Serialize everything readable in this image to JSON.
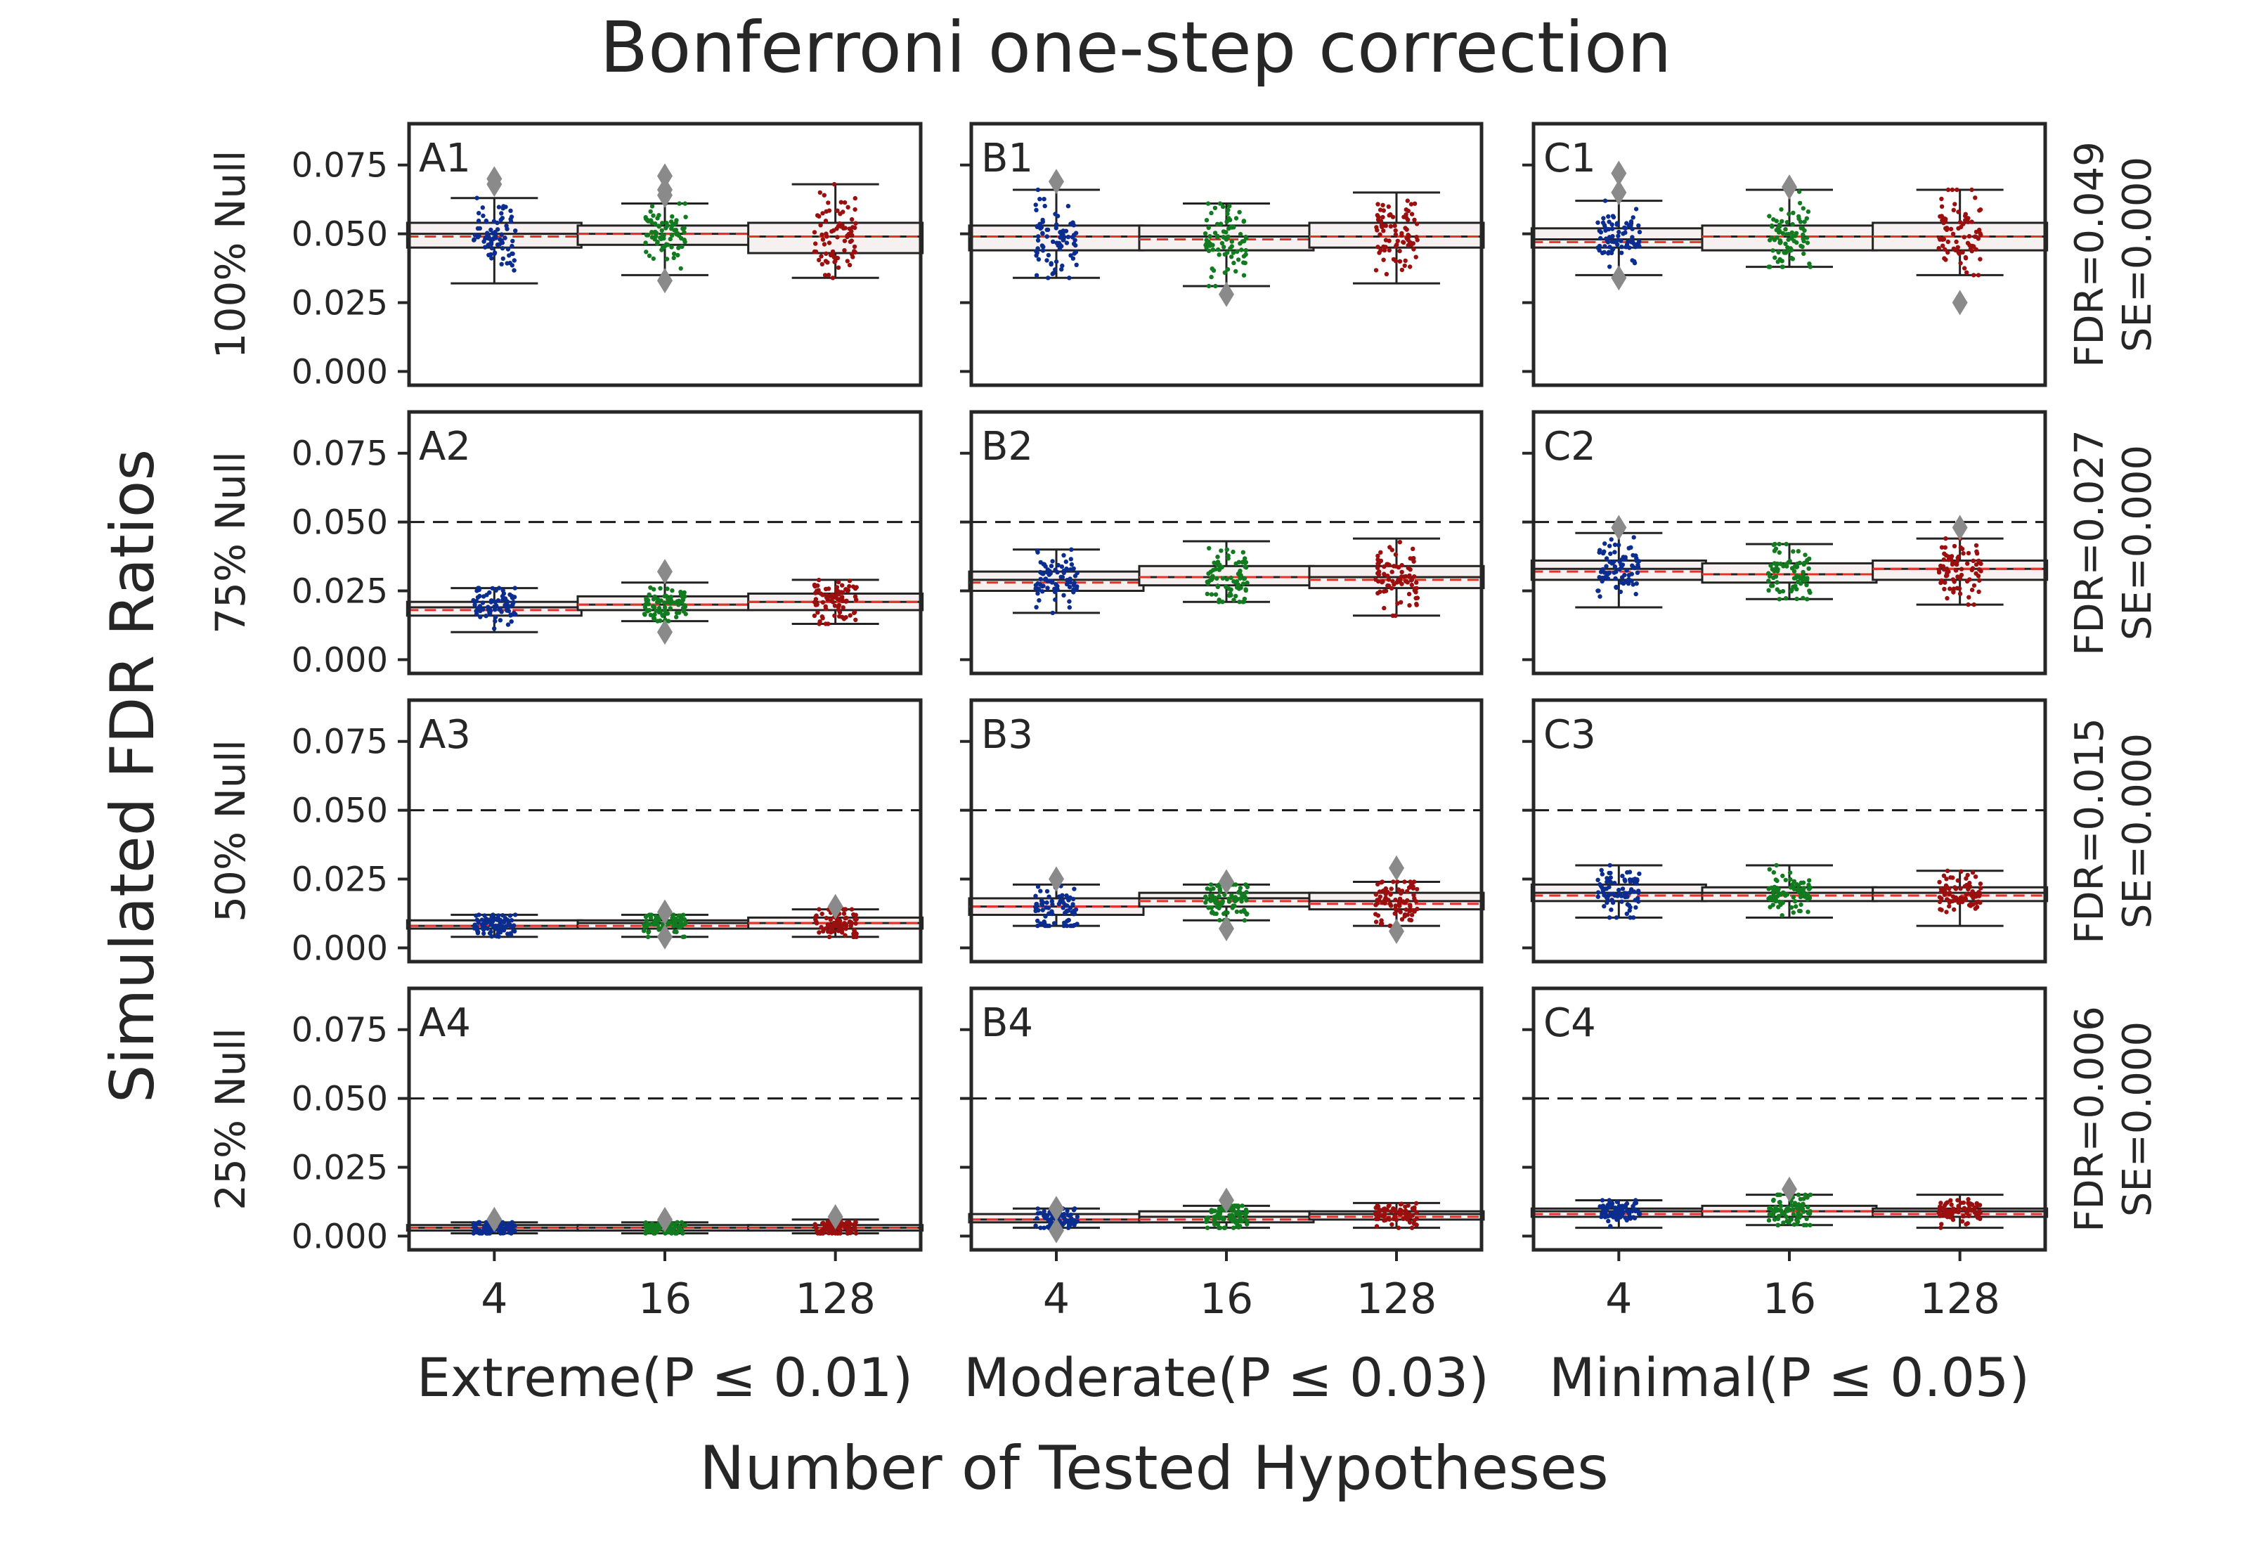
{
  "chart_data": {
    "type": "box",
    "title": "Bonferroni one-step correction",
    "xlabel": "Number of Tested Hypotheses",
    "ylabel": "Simulated FDR Ratios",
    "ylim": [
      -0.005,
      0.09
    ],
    "yticks": [
      "0.000",
      "0.025",
      "0.050",
      "0.075"
    ],
    "ytick_values": [
      0,
      0.025,
      0.05,
      0.075
    ],
    "reference_line": 0.05,
    "categories": [
      "4",
      "16",
      "128"
    ],
    "series_colors": [
      "#0b2d8f",
      "#127a1f",
      "#9b0f0f"
    ],
    "columns": [
      "Extreme(P ≤ 0.01)",
      "Moderate(P ≤ 0.03)",
      "Minimal(P ≤ 0.05)"
    ],
    "rows": [
      {
        "label": "100% Null",
        "annotation": [
          "FDR=0.049",
          "SE=0.000"
        ]
      },
      {
        "label": "75% Null",
        "annotation": [
          "FDR=0.027",
          "SE=0.000"
        ]
      },
      {
        "label": "50% Null",
        "annotation": [
          "FDR=0.015",
          "SE=0.000"
        ]
      },
      {
        "label": "25% Null",
        "annotation": [
          "FDR=0.006",
          "SE=0.000"
        ]
      }
    ],
    "panels": [
      {
        "id": "A1",
        "row": 0,
        "col": 0,
        "boxes": [
          {
            "category": "4",
            "q1": 0.045,
            "median": 0.05,
            "q3": 0.054,
            "mean": 0.049,
            "wlo": 0.032,
            "whi": 0.063,
            "outliers": [
              0.07,
              0.068
            ]
          },
          {
            "category": "16",
            "q1": 0.046,
            "median": 0.05,
            "q3": 0.053,
            "mean": 0.05,
            "wlo": 0.035,
            "whi": 0.061,
            "outliers": [
              0.071,
              0.066,
              0.064,
              0.033
            ]
          },
          {
            "category": "128",
            "q1": 0.043,
            "median": 0.049,
            "q3": 0.054,
            "mean": 0.049,
            "wlo": 0.034,
            "whi": 0.068,
            "outliers": []
          }
        ]
      },
      {
        "id": "B1",
        "row": 0,
        "col": 1,
        "boxes": [
          {
            "category": "4",
            "q1": 0.044,
            "median": 0.049,
            "q3": 0.053,
            "mean": 0.049,
            "wlo": 0.034,
            "whi": 0.066,
            "outliers": [
              0.069
            ]
          },
          {
            "category": "16",
            "q1": 0.044,
            "median": 0.049,
            "q3": 0.053,
            "mean": 0.048,
            "wlo": 0.031,
            "whi": 0.061,
            "outliers": [
              0.028
            ]
          },
          {
            "category": "128",
            "q1": 0.045,
            "median": 0.049,
            "q3": 0.054,
            "mean": 0.049,
            "wlo": 0.032,
            "whi": 0.065,
            "outliers": []
          }
        ]
      },
      {
        "id": "C1",
        "row": 0,
        "col": 2,
        "boxes": [
          {
            "category": "4",
            "q1": 0.045,
            "median": 0.048,
            "q3": 0.052,
            "mean": 0.047,
            "wlo": 0.035,
            "whi": 0.062,
            "outliers": [
              0.072,
              0.065,
              0.034
            ]
          },
          {
            "category": "16",
            "q1": 0.044,
            "median": 0.049,
            "q3": 0.053,
            "mean": 0.049,
            "wlo": 0.038,
            "whi": 0.066,
            "outliers": [
              0.067
            ]
          },
          {
            "category": "128",
            "q1": 0.044,
            "median": 0.049,
            "q3": 0.054,
            "mean": 0.049,
            "wlo": 0.035,
            "whi": 0.066,
            "outliers": [
              0.025
            ]
          }
        ]
      },
      {
        "id": "A2",
        "row": 1,
        "col": 0,
        "boxes": [
          {
            "category": "4",
            "q1": 0.016,
            "median": 0.019,
            "q3": 0.021,
            "mean": 0.018,
            "wlo": 0.01,
            "whi": 0.026,
            "outliers": []
          },
          {
            "category": "16",
            "q1": 0.018,
            "median": 0.02,
            "q3": 0.023,
            "mean": 0.02,
            "wlo": 0.014,
            "whi": 0.028,
            "outliers": [
              0.032,
              0.01
            ]
          },
          {
            "category": "128",
            "q1": 0.018,
            "median": 0.021,
            "q3": 0.024,
            "mean": 0.021,
            "wlo": 0.013,
            "whi": 0.029,
            "outliers": []
          }
        ]
      },
      {
        "id": "B2",
        "row": 1,
        "col": 1,
        "boxes": [
          {
            "category": "4",
            "q1": 0.025,
            "median": 0.029,
            "q3": 0.032,
            "mean": 0.028,
            "wlo": 0.017,
            "whi": 0.04,
            "outliers": []
          },
          {
            "category": "16",
            "q1": 0.027,
            "median": 0.03,
            "q3": 0.034,
            "mean": 0.03,
            "wlo": 0.021,
            "whi": 0.043,
            "outliers": []
          },
          {
            "category": "128",
            "q1": 0.026,
            "median": 0.03,
            "q3": 0.034,
            "mean": 0.029,
            "wlo": 0.016,
            "whi": 0.044,
            "outliers": []
          }
        ]
      },
      {
        "id": "C2",
        "row": 1,
        "col": 2,
        "boxes": [
          {
            "category": "4",
            "q1": 0.029,
            "median": 0.033,
            "q3": 0.036,
            "mean": 0.032,
            "wlo": 0.019,
            "whi": 0.046,
            "outliers": [
              0.048
            ]
          },
          {
            "category": "16",
            "q1": 0.028,
            "median": 0.031,
            "q3": 0.035,
            "mean": 0.031,
            "wlo": 0.022,
            "whi": 0.042,
            "outliers": []
          },
          {
            "category": "128",
            "q1": 0.029,
            "median": 0.033,
            "q3": 0.036,
            "mean": 0.033,
            "wlo": 0.02,
            "whi": 0.044,
            "outliers": [
              0.048
            ]
          }
        ]
      },
      {
        "id": "A3",
        "row": 2,
        "col": 0,
        "boxes": [
          {
            "category": "4",
            "q1": 0.007,
            "median": 0.008,
            "q3": 0.01,
            "mean": 0.008,
            "wlo": 0.004,
            "whi": 0.012,
            "outliers": []
          },
          {
            "category": "16",
            "q1": 0.007,
            "median": 0.009,
            "q3": 0.01,
            "mean": 0.008,
            "wlo": 0.004,
            "whi": 0.012,
            "outliers": [
              0.013,
              0.004
            ]
          },
          {
            "category": "128",
            "q1": 0.007,
            "median": 0.009,
            "q3": 0.011,
            "mean": 0.009,
            "wlo": 0.004,
            "whi": 0.014,
            "outliers": [
              0.015
            ]
          }
        ]
      },
      {
        "id": "B3",
        "row": 2,
        "col": 1,
        "boxes": [
          {
            "category": "4",
            "q1": 0.012,
            "median": 0.015,
            "q3": 0.018,
            "mean": 0.015,
            "wlo": 0.008,
            "whi": 0.023,
            "outliers": [
              0.025
            ]
          },
          {
            "category": "16",
            "q1": 0.015,
            "median": 0.018,
            "q3": 0.02,
            "mean": 0.017,
            "wlo": 0.01,
            "whi": 0.023,
            "outliers": [
              0.024,
              0.007
            ]
          },
          {
            "category": "128",
            "q1": 0.014,
            "median": 0.017,
            "q3": 0.02,
            "mean": 0.016,
            "wlo": 0.008,
            "whi": 0.024,
            "outliers": [
              0.029,
              0.006
            ]
          }
        ]
      },
      {
        "id": "C3",
        "row": 2,
        "col": 2,
        "boxes": [
          {
            "category": "4",
            "q1": 0.017,
            "median": 0.02,
            "q3": 0.023,
            "mean": 0.019,
            "wlo": 0.011,
            "whi": 0.03,
            "outliers": []
          },
          {
            "category": "16",
            "q1": 0.017,
            "median": 0.02,
            "q3": 0.022,
            "mean": 0.019,
            "wlo": 0.011,
            "whi": 0.03,
            "outliers": []
          },
          {
            "category": "128",
            "q1": 0.017,
            "median": 0.02,
            "q3": 0.022,
            "mean": 0.019,
            "wlo": 0.008,
            "whi": 0.028,
            "outliers": []
          }
        ]
      },
      {
        "id": "A4",
        "row": 3,
        "col": 0,
        "boxes": [
          {
            "category": "4",
            "q1": 0.002,
            "median": 0.003,
            "q3": 0.004,
            "mean": 0.003,
            "wlo": 0.001,
            "whi": 0.005,
            "outliers": [
              0.006
            ]
          },
          {
            "category": "16",
            "q1": 0.002,
            "median": 0.003,
            "q3": 0.004,
            "mean": 0.003,
            "wlo": 0.001,
            "whi": 0.005,
            "outliers": [
              0.006
            ]
          },
          {
            "category": "128",
            "q1": 0.002,
            "median": 0.003,
            "q3": 0.004,
            "mean": 0.003,
            "wlo": 0.001,
            "whi": 0.006,
            "outliers": [
              0.007
            ]
          }
        ]
      },
      {
        "id": "B4",
        "row": 3,
        "col": 1,
        "boxes": [
          {
            "category": "4",
            "q1": 0.005,
            "median": 0.006,
            "q3": 0.008,
            "mean": 0.006,
            "wlo": 0.003,
            "whi": 0.01,
            "outliers": [
              0.01,
              0.002
            ]
          },
          {
            "category": "16",
            "q1": 0.005,
            "median": 0.007,
            "q3": 0.009,
            "mean": 0.006,
            "wlo": 0.003,
            "whi": 0.011,
            "outliers": [
              0.013
            ]
          },
          {
            "category": "128",
            "q1": 0.006,
            "median": 0.008,
            "q3": 0.009,
            "mean": 0.007,
            "wlo": 0.003,
            "whi": 0.012,
            "outliers": []
          }
        ]
      },
      {
        "id": "C4",
        "row": 3,
        "col": 2,
        "boxes": [
          {
            "category": "4",
            "q1": 0.007,
            "median": 0.009,
            "q3": 0.01,
            "mean": 0.008,
            "wlo": 0.003,
            "whi": 0.013,
            "outliers": []
          },
          {
            "category": "16",
            "q1": 0.007,
            "median": 0.009,
            "q3": 0.011,
            "mean": 0.009,
            "wlo": 0.004,
            "whi": 0.015,
            "outliers": [
              0.017
            ]
          },
          {
            "category": "128",
            "q1": 0.007,
            "median": 0.009,
            "q3": 0.01,
            "mean": 0.008,
            "wlo": 0.003,
            "whi": 0.015,
            "outliers": []
          }
        ]
      }
    ]
  }
}
